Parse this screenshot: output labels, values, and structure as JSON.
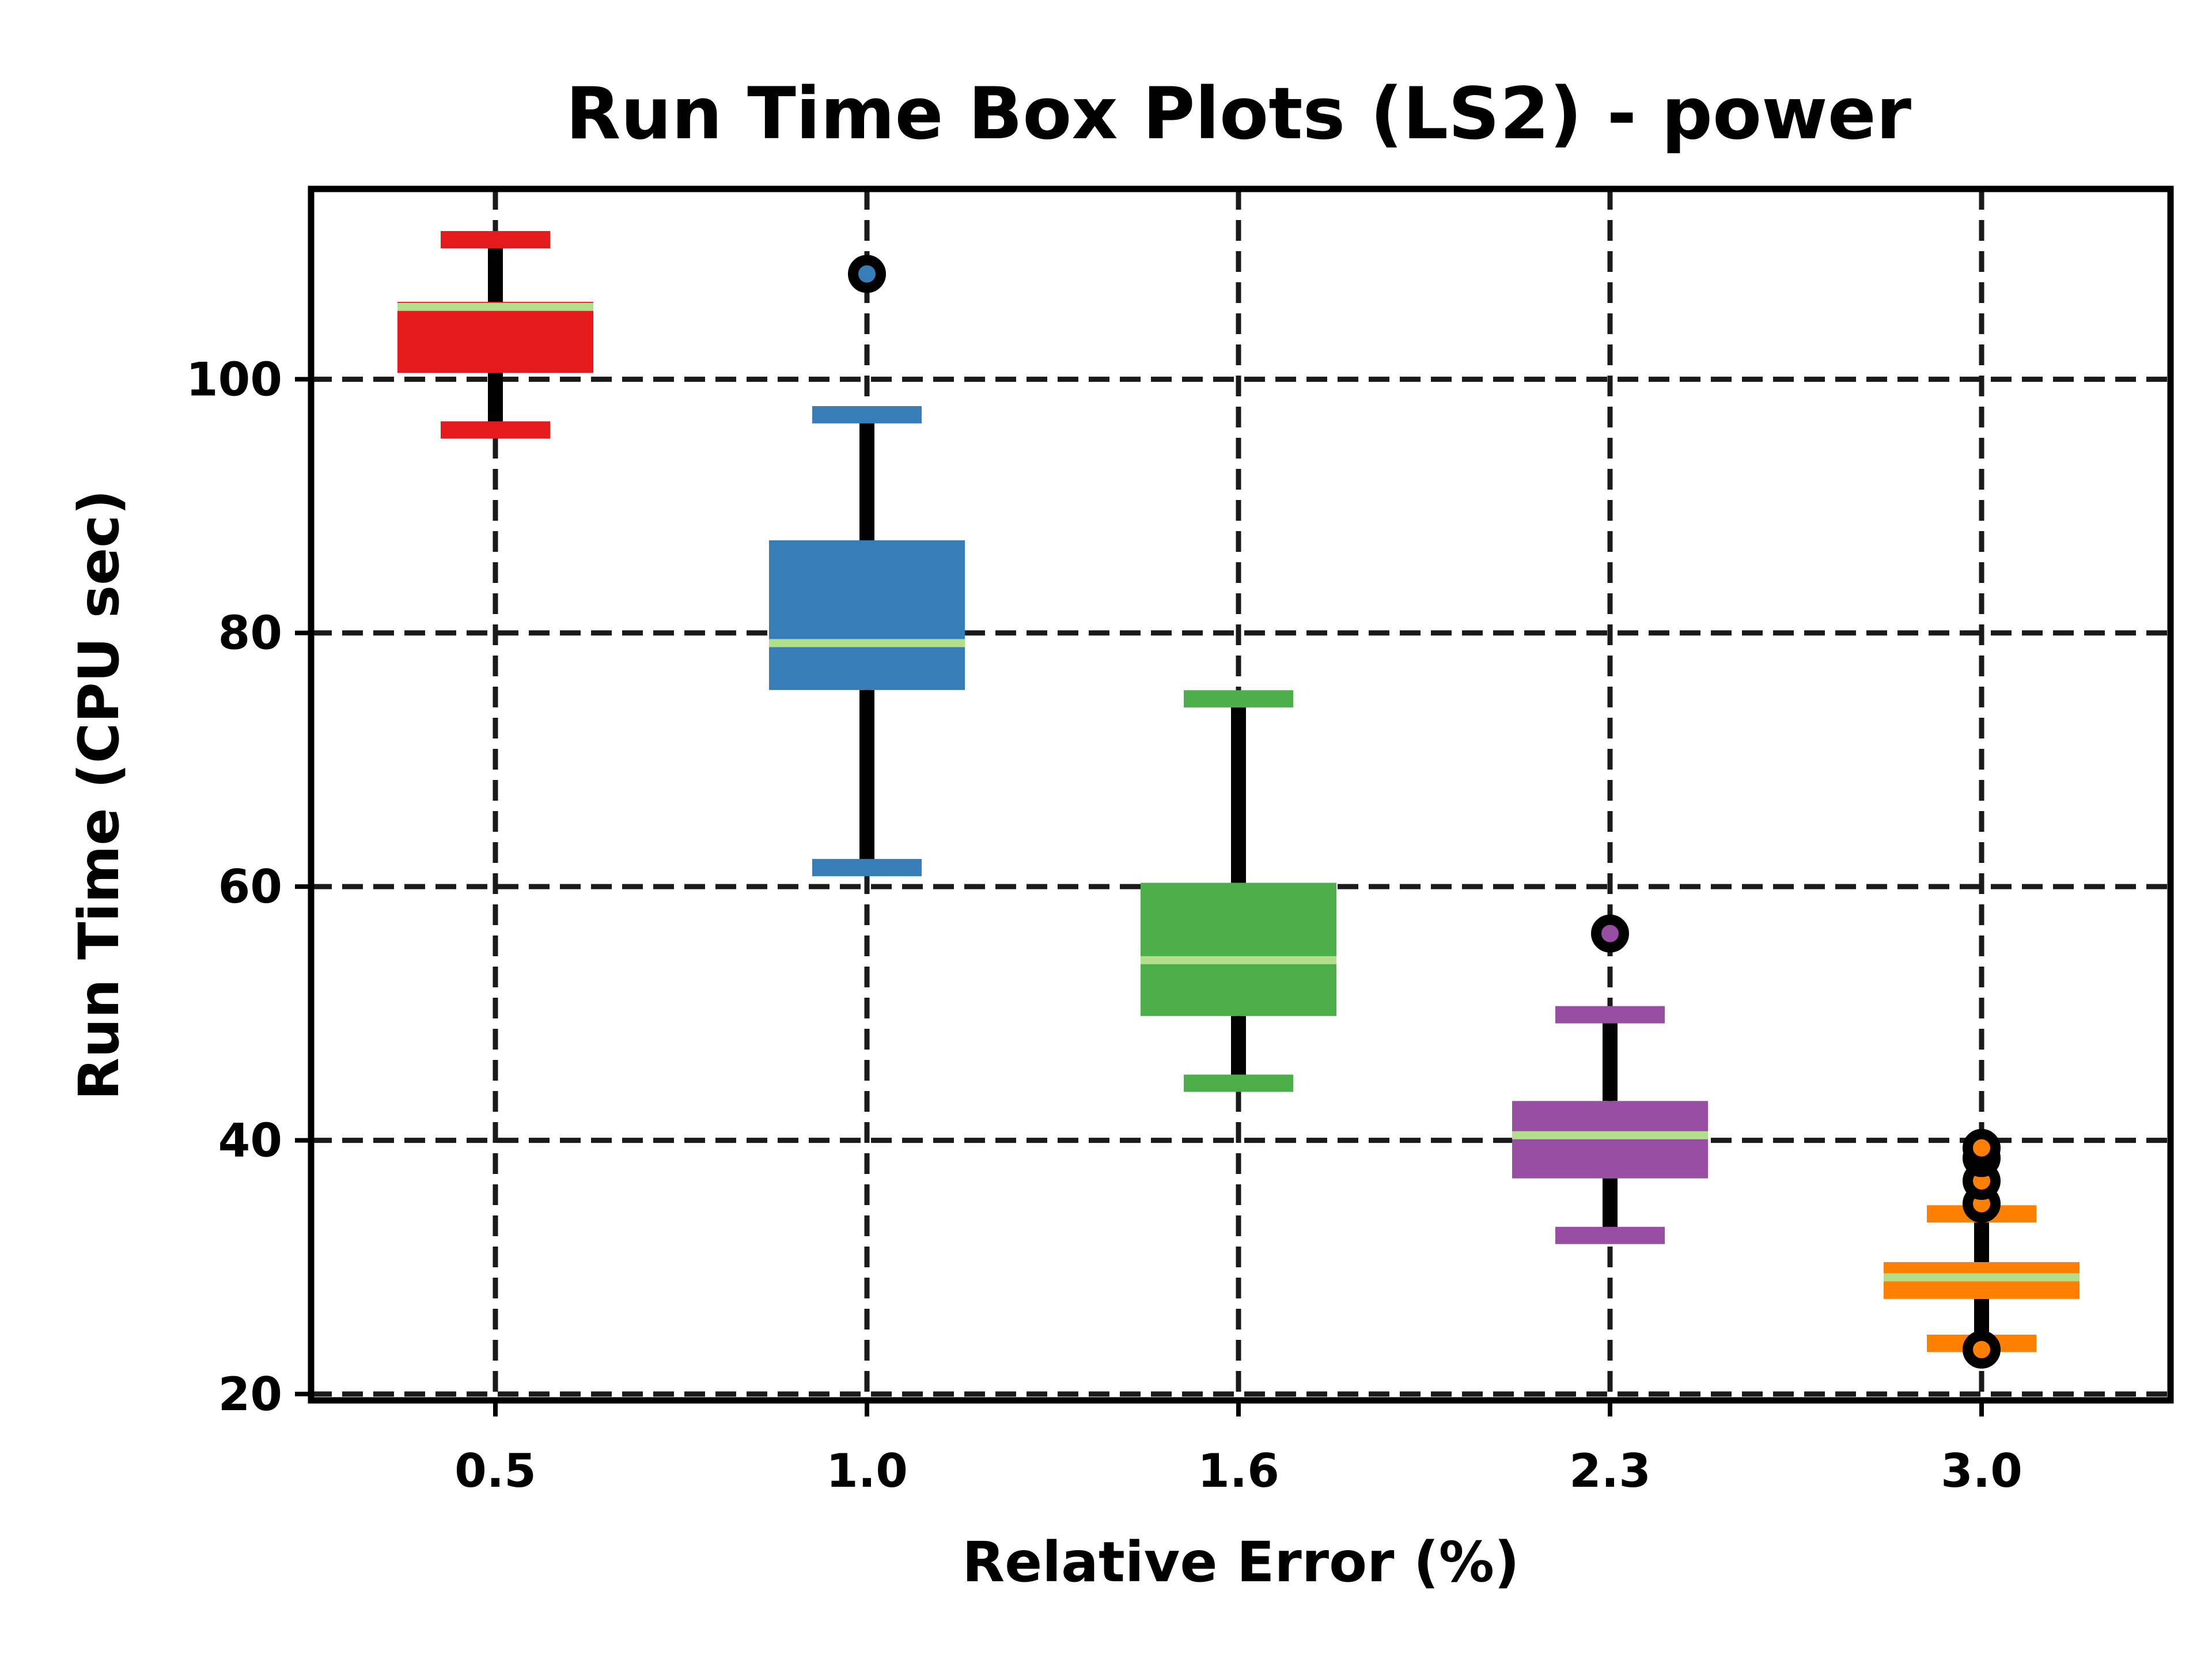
{
  "chart_data": {
    "type": "box",
    "title": "Run Time Box Plots (LS2) - power",
    "xlabel": "Relative Error (%)",
    "ylabel": "Run Time (CPU sec)",
    "ylim": [
      19.5,
      115
    ],
    "yticks": [
      20,
      40,
      60,
      80,
      100
    ],
    "ytick_labels": [
      "20",
      "40",
      "60",
      "80",
      "100"
    ],
    "grid": true,
    "median_color": "#b2df8a",
    "categories": [
      "0.5",
      "1.0",
      "1.6",
      "2.3",
      "3.0"
    ],
    "boxes": [
      {
        "category": "0.5",
        "color": "#e41a1c",
        "whisker_low": 96.0,
        "q1": 100.5,
        "median": 105.7,
        "q3": 106.1,
        "whisker_high": 111.0,
        "outliers": []
      },
      {
        "category": "1.0",
        "color": "#377eb8",
        "whisker_low": 61.5,
        "q1": 75.5,
        "median": 79.2,
        "q3": 87.3,
        "whisker_high": 97.2,
        "outliers": [
          108.3
        ]
      },
      {
        "category": "1.6",
        "color": "#4daf4a",
        "whisker_low": 44.5,
        "q1": 49.8,
        "median": 54.2,
        "q3": 60.3,
        "whisker_high": 74.8,
        "outliers": []
      },
      {
        "category": "2.3",
        "color": "#984ea3",
        "whisker_low": 32.5,
        "q1": 37.0,
        "median": 40.4,
        "q3": 43.1,
        "whisker_high": 49.9,
        "outliers": [
          56.3
        ]
      },
      {
        "category": "3.0",
        "color": "#ff7f00",
        "whisker_low": 24.0,
        "q1": 27.5,
        "median": 29.2,
        "q3": 30.4,
        "whisker_high": 34.2,
        "outliers": [
          23.5,
          35.0,
          36.8,
          38.6,
          39.4
        ]
      }
    ]
  }
}
